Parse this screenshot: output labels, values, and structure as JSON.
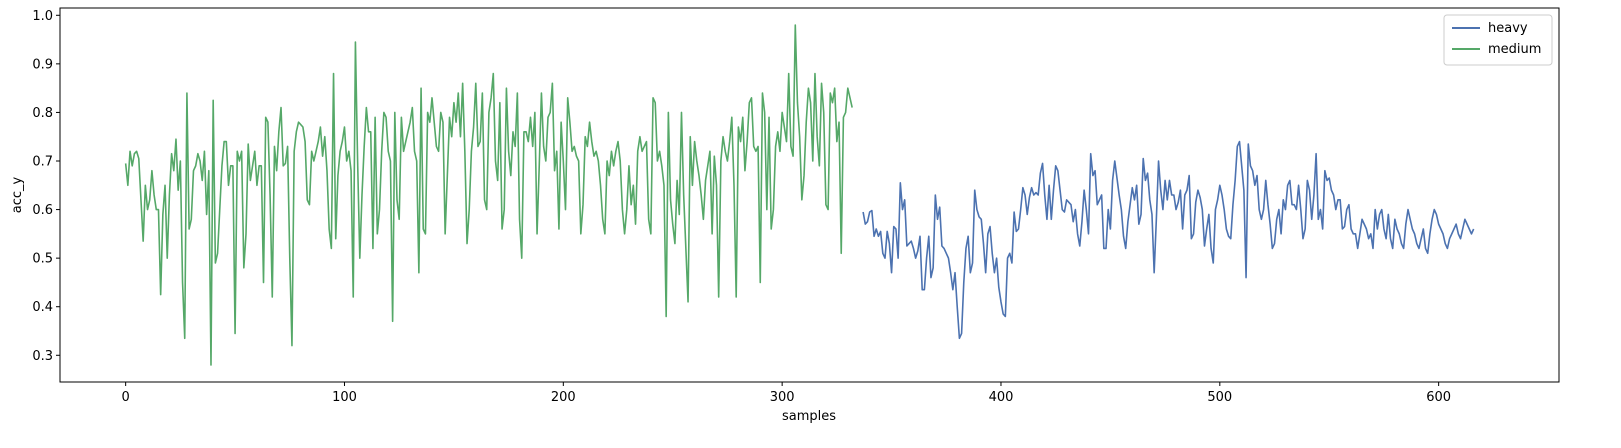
{
  "chart_data": {
    "type": "line",
    "title": "",
    "xlabel": "samples",
    "ylabel": "acc_y",
    "xlim": [
      -30,
      655
    ],
    "ylim": [
      0.245,
      1.015
    ],
    "xticks": [
      0,
      100,
      200,
      300,
      400,
      500,
      600
    ],
    "yticks": [
      0.3,
      0.4,
      0.5,
      0.6,
      0.7,
      0.8,
      0.9,
      1.0
    ],
    "ytick_labels": [
      "0.3",
      "0.4",
      "0.5",
      "0.6",
      "0.7",
      "0.8",
      "0.9",
      "1.0"
    ],
    "grid": false,
    "legend_position": "top-right",
    "series": [
      {
        "name": "heavy",
        "color": "#4c72b0",
        "x_start": 337,
        "values": [
          0.595,
          0.57,
          0.575,
          0.595,
          0.598,
          0.545,
          0.56,
          0.545,
          0.555,
          0.51,
          0.5,
          0.555,
          0.53,
          0.47,
          0.565,
          0.56,
          0.5,
          0.655,
          0.6,
          0.62,
          0.525,
          0.53,
          0.535,
          0.52,
          0.5,
          0.515,
          0.545,
          0.435,
          0.435,
          0.5,
          0.545,
          0.46,
          0.48,
          0.63,
          0.58,
          0.605,
          0.525,
          0.52,
          0.51,
          0.5,
          0.47,
          0.435,
          0.47,
          0.4,
          0.335,
          0.345,
          0.45,
          0.52,
          0.545,
          0.47,
          0.49,
          0.64,
          0.6,
          0.585,
          0.58,
          0.53,
          0.47,
          0.55,
          0.565,
          0.51,
          0.47,
          0.5,
          0.44,
          0.41,
          0.385,
          0.38,
          0.5,
          0.51,
          0.49,
          0.595,
          0.555,
          0.56,
          0.6,
          0.645,
          0.63,
          0.59,
          0.625,
          0.645,
          0.63,
          0.635,
          0.63,
          0.675,
          0.695,
          0.63,
          0.58,
          0.65,
          0.58,
          0.64,
          0.69,
          0.68,
          0.64,
          0.6,
          0.595,
          0.62,
          0.615,
          0.61,
          0.575,
          0.6,
          0.55,
          0.525,
          0.575,
          0.64,
          0.6,
          0.55,
          0.715,
          0.67,
          0.68,
          0.61,
          0.62,
          0.63,
          0.52,
          0.52,
          0.6,
          0.56,
          0.66,
          0.7,
          0.665,
          0.63,
          0.6,
          0.545,
          0.52,
          0.575,
          0.61,
          0.645,
          0.62,
          0.65,
          0.57,
          0.59,
          0.705,
          0.66,
          0.675,
          0.62,
          0.59,
          0.47,
          0.58,
          0.7,
          0.64,
          0.6,
          0.66,
          0.62,
          0.66,
          0.63,
          0.63,
          0.6,
          0.615,
          0.64,
          0.56,
          0.63,
          0.64,
          0.67,
          0.54,
          0.55,
          0.615,
          0.64,
          0.625,
          0.6,
          0.525,
          0.56,
          0.59,
          0.52,
          0.49,
          0.6,
          0.62,
          0.65,
          0.63,
          0.6,
          0.56,
          0.545,
          0.54,
          0.61,
          0.66,
          0.73,
          0.74,
          0.69,
          0.64,
          0.46,
          0.735,
          0.69,
          0.68,
          0.65,
          0.67,
          0.6,
          0.58,
          0.6,
          0.66,
          0.61,
          0.57,
          0.52,
          0.53,
          0.58,
          0.6,
          0.55,
          0.62,
          0.6,
          0.65,
          0.66,
          0.61,
          0.61,
          0.6,
          0.65,
          0.6,
          0.54,
          0.56,
          0.66,
          0.64,
          0.58,
          0.63,
          0.715,
          0.58,
          0.6,
          0.56,
          0.68,
          0.66,
          0.665,
          0.64,
          0.63,
          0.6,
          0.62,
          0.62,
          0.56,
          0.565,
          0.6,
          0.61,
          0.56,
          0.55,
          0.55,
          0.52,
          0.55,
          0.58,
          0.57,
          0.56,
          0.54,
          0.55,
          0.52,
          0.6,
          0.56,
          0.59,
          0.6,
          0.56,
          0.54,
          0.59,
          0.54,
          0.52,
          0.58,
          0.56,
          0.55,
          0.53,
          0.52,
          0.57,
          0.6,
          0.58,
          0.56,
          0.55,
          0.53,
          0.52,
          0.54,
          0.56,
          0.52,
          0.51,
          0.55,
          0.58,
          0.6,
          0.59,
          0.57,
          0.56,
          0.55,
          0.53,
          0.52,
          0.54,
          0.55,
          0.56,
          0.57,
          0.55,
          0.54,
          0.56,
          0.58,
          0.57,
          0.56,
          0.55,
          0.56
        ]
      },
      {
        "name": "medium",
        "color": "#55a868",
        "x_start": 0,
        "values": [
          0.695,
          0.65,
          0.72,
          0.69,
          0.715,
          0.72,
          0.705,
          0.62,
          0.535,
          0.65,
          0.6,
          0.62,
          0.68,
          0.63,
          0.6,
          0.6,
          0.425,
          0.59,
          0.65,
          0.5,
          0.63,
          0.715,
          0.68,
          0.745,
          0.64,
          0.7,
          0.45,
          0.335,
          0.84,
          0.56,
          0.58,
          0.68,
          0.69,
          0.715,
          0.7,
          0.66,
          0.72,
          0.59,
          0.68,
          0.28,
          0.825,
          0.49,
          0.51,
          0.6,
          0.69,
          0.74,
          0.74,
          0.65,
          0.69,
          0.69,
          0.345,
          0.72,
          0.7,
          0.72,
          0.48,
          0.55,
          0.735,
          0.66,
          0.69,
          0.72,
          0.65,
          0.69,
          0.69,
          0.45,
          0.79,
          0.78,
          0.63,
          0.42,
          0.73,
          0.68,
          0.76,
          0.81,
          0.69,
          0.695,
          0.73,
          0.5,
          0.32,
          0.72,
          0.76,
          0.78,
          0.775,
          0.77,
          0.74,
          0.62,
          0.61,
          0.72,
          0.7,
          0.72,
          0.74,
          0.77,
          0.71,
          0.75,
          0.68,
          0.56,
          0.52,
          0.88,
          0.54,
          0.67,
          0.72,
          0.74,
          0.77,
          0.7,
          0.72,
          0.68,
          0.42,
          0.945,
          0.7,
          0.5,
          0.63,
          0.73,
          0.81,
          0.76,
          0.76,
          0.52,
          0.79,
          0.55,
          0.6,
          0.72,
          0.8,
          0.79,
          0.72,
          0.7,
          0.37,
          0.8,
          0.62,
          0.58,
          0.79,
          0.72,
          0.74,
          0.76,
          0.78,
          0.81,
          0.72,
          0.7,
          0.47,
          0.85,
          0.56,
          0.55,
          0.8,
          0.78,
          0.83,
          0.78,
          0.73,
          0.72,
          0.8,
          0.78,
          0.55,
          0.67,
          0.79,
          0.75,
          0.82,
          0.78,
          0.84,
          0.75,
          0.86,
          0.72,
          0.53,
          0.6,
          0.72,
          0.77,
          0.86,
          0.73,
          0.74,
          0.84,
          0.62,
          0.6,
          0.8,
          0.83,
          0.88,
          0.7,
          0.66,
          0.82,
          0.56,
          0.6,
          0.85,
          0.72,
          0.67,
          0.76,
          0.73,
          0.84,
          0.58,
          0.5,
          0.76,
          0.76,
          0.74,
          0.79,
          0.73,
          0.8,
          0.55,
          0.69,
          0.84,
          0.73,
          0.7,
          0.79,
          0.8,
          0.86,
          0.68,
          0.72,
          0.56,
          0.78,
          0.7,
          0.6,
          0.83,
          0.78,
          0.72,
          0.73,
          0.71,
          0.7,
          0.55,
          0.61,
          0.75,
          0.73,
          0.78,
          0.74,
          0.71,
          0.72,
          0.7,
          0.65,
          0.58,
          0.55,
          0.7,
          0.67,
          0.72,
          0.69,
          0.72,
          0.74,
          0.7,
          0.6,
          0.55,
          0.6,
          0.69,
          0.61,
          0.65,
          0.57,
          0.72,
          0.75,
          0.72,
          0.73,
          0.74,
          0.58,
          0.55,
          0.83,
          0.82,
          0.7,
          0.72,
          0.69,
          0.65,
          0.38,
          0.8,
          0.62,
          0.57,
          0.53,
          0.66,
          0.59,
          0.8,
          0.63,
          0.52,
          0.41,
          0.75,
          0.65,
          0.74,
          0.7,
          0.67,
          0.63,
          0.58,
          0.66,
          0.69,
          0.72,
          0.55,
          0.71,
          0.65,
          0.42,
          0.7,
          0.75,
          0.72,
          0.7,
          0.74,
          0.79,
          0.65,
          0.42,
          0.77,
          0.74,
          0.79,
          0.68,
          0.74,
          0.82,
          0.83,
          0.73,
          0.72,
          0.73,
          0.45,
          0.84,
          0.8,
          0.6,
          0.79,
          0.56,
          0.6,
          0.73,
          0.76,
          0.72,
          0.8,
          0.77,
          0.74,
          0.88,
          0.73,
          0.71,
          0.98,
          0.82,
          0.75,
          0.62,
          0.67,
          0.78,
          0.85,
          0.82,
          0.7,
          0.88,
          0.75,
          0.69,
          0.86,
          0.8,
          0.61,
          0.6,
          0.84,
          0.82,
          0.85,
          0.74,
          0.78,
          0.51,
          0.79,
          0.8,
          0.85,
          0.83,
          0.81
        ]
      }
    ]
  }
}
